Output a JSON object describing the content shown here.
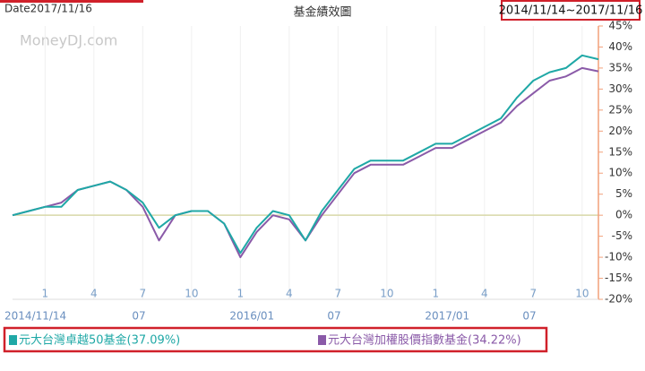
{
  "chart_data": {
    "type": "line",
    "title": "基金績效圖",
    "date_label": "Date2017/11/16",
    "range_label": "2014/11/14~2017/11/16",
    "watermark": "MoneyDJ.com",
    "x": [
      0,
      1,
      2,
      3,
      4,
      5,
      6,
      7,
      8,
      9,
      10,
      11,
      12,
      13,
      14,
      15,
      16,
      17,
      18,
      19,
      20,
      21,
      22,
      23,
      24,
      25,
      26,
      27,
      28,
      29,
      30,
      31,
      32,
      33,
      34,
      35,
      36
    ],
    "xlim": [
      0,
      36
    ],
    "xticks": [
      {
        "value": 2,
        "label": "1"
      },
      {
        "value": 5,
        "label": "4"
      },
      {
        "value": 8,
        "label": "7"
      },
      {
        "value": 11,
        "label": "10"
      },
      {
        "value": 14,
        "label": "1"
      },
      {
        "value": 17,
        "label": "4"
      },
      {
        "value": 20,
        "label": "7"
      },
      {
        "value": 23,
        "label": "10"
      },
      {
        "value": 26,
        "label": "1"
      },
      {
        "value": 29,
        "label": "4"
      },
      {
        "value": 32,
        "label": "7"
      },
      {
        "value": 35,
        "label": "10"
      }
    ],
    "xticks_bottom": [
      {
        "value": 0,
        "label": "2014/11/14"
      },
      {
        "value": 8,
        "label": "07"
      },
      {
        "value": 14,
        "label": "2016/01"
      },
      {
        "value": 20,
        "label": "07"
      },
      {
        "value": 26,
        "label": "2017/01"
      },
      {
        "value": 32,
        "label": "07"
      }
    ],
    "ylim": [
      -20,
      45
    ],
    "yticks": [
      {
        "value": -20,
        "label": "-20%"
      },
      {
        "value": -15,
        "label": "-15%"
      },
      {
        "value": -10,
        "label": "-10%"
      },
      {
        "value": -5,
        "label": "-5%"
      },
      {
        "value": 0,
        "label": "0%"
      },
      {
        "value": 5,
        "label": "5%"
      },
      {
        "value": 10,
        "label": "10%"
      },
      {
        "value": 15,
        "label": "15%"
      },
      {
        "value": 20,
        "label": "20%"
      },
      {
        "value": 25,
        "label": "25%"
      },
      {
        "value": 30,
        "label": "30%"
      },
      {
        "value": 35,
        "label": "35%"
      },
      {
        "value": 40,
        "label": "40%"
      },
      {
        "value": 45,
        "label": "45%"
      }
    ],
    "grid": true,
    "series": [
      {
        "name": "元大台灣卓越50基金(37.09%)",
        "color": "#1fa8a6",
        "values": [
          0,
          1,
          2,
          2,
          6,
          7,
          8,
          6,
          3,
          -3,
          0,
          1,
          1,
          -2,
          -9,
          -3,
          1,
          0,
          -6,
          1,
          6,
          11,
          13,
          13,
          13,
          15,
          17,
          17,
          19,
          21,
          23,
          28,
          32,
          34,
          35,
          38,
          37.09
        ]
      },
      {
        "name": "元大台灣加權股價指數基金(34.22%)",
        "color": "#8a5aa8",
        "values": [
          0,
          1,
          2,
          3,
          6,
          7,
          8,
          6,
          2,
          -6,
          0,
          1,
          1,
          -2,
          -10,
          -4,
          0,
          -1,
          -6,
          0,
          5,
          10,
          12,
          12,
          12,
          14,
          16,
          16,
          18,
          20,
          22,
          26,
          29,
          32,
          33,
          35,
          34.22
        ]
      }
    ]
  }
}
